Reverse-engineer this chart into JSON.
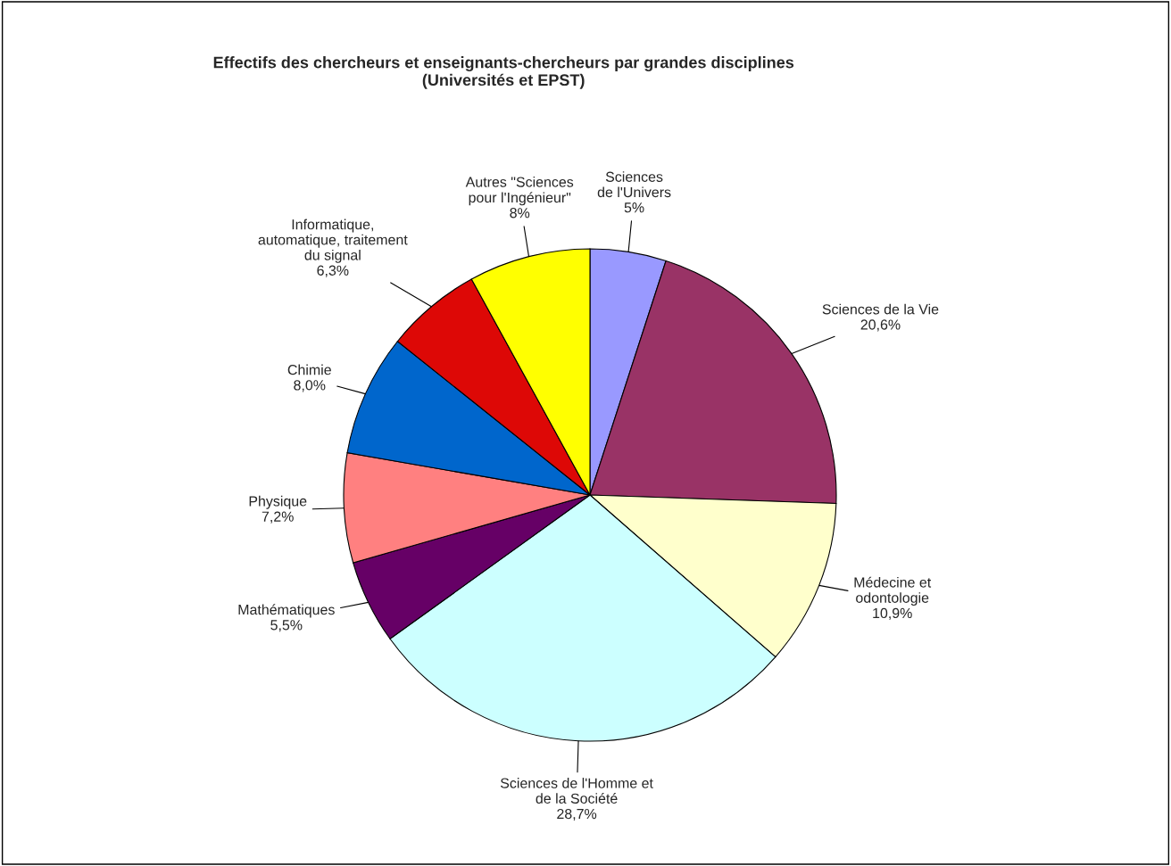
{
  "chart_data": {
    "type": "pie",
    "title": "Effectifs des chercheurs et enseignants-chercheurs par grandes disciplines\n(Universités et EPST)",
    "categories": [
      "Sciences\nde l'Univers",
      "Sciences de la Vie",
      "Médecine et\nodontologie",
      "Sciences de l'Homme et\nde la Société",
      "Mathématiques",
      "Physique",
      "Chimie",
      "Informatique,\nautomatique, traitement\ndu signal",
      "Autres \"Sciences\npour l'Ingénieur\""
    ],
    "values": [
      5,
      20.6,
      10.9,
      28.7,
      5.5,
      7.2,
      8.0,
      6.3,
      8
    ],
    "value_labels": [
      "5%",
      "20,6%",
      "10,9%",
      "28,7%",
      "5,5%",
      "7,2%",
      "8,0%",
      "6,3%",
      "8%"
    ],
    "colors": [
      "#9999ff",
      "#993366",
      "#ffffcc",
      "#ccffff",
      "#660066",
      "#ff8080",
      "#0066cc",
      "#dd0806",
      "#ffff00"
    ],
    "legend": false
  }
}
